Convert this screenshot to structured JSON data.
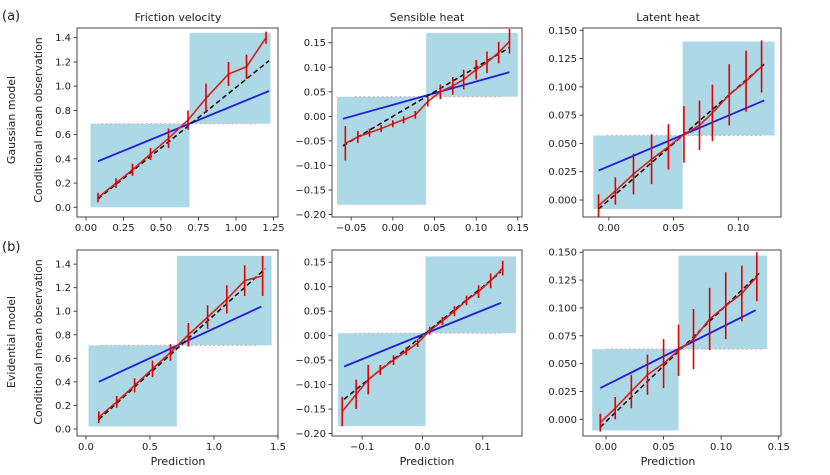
{
  "figure": {
    "row_labels": [
      "(a)",
      "(b)"
    ],
    "row_titles": [
      "Gaussian model",
      "Evidential model"
    ],
    "column_titles": [
      "Friction velocity",
      "Sensible heat",
      "Latent heat"
    ],
    "xlabel": "Prediction",
    "ylabel": "Conditional mean observation"
  },
  "colors": {
    "shade": "#add8e6",
    "model_line": "#1f1fe0",
    "curve": "#d62020",
    "errorbar": "#e00000",
    "ideal": "#111111",
    "mean_line": "#d9a8a8"
  },
  "chart_data": [
    {
      "type": "line",
      "row": 0,
      "col": 0,
      "title": "Friction velocity",
      "xlim": [
        -0.06,
        1.28
      ],
      "ylim": [
        -0.08,
        1.48
      ],
      "xticks": [
        0.0,
        0.25,
        0.5,
        0.75,
        1.0,
        1.25
      ],
      "xtick_labels": [
        "0.00",
        "0.25",
        "0.50",
        "0.75",
        "1.00",
        "1.25"
      ],
      "yticks": [
        0.0,
        0.2,
        0.4,
        0.6,
        0.8,
        1.0,
        1.2,
        1.4
      ],
      "ytick_labels": [
        "0.0",
        "0.2",
        "0.4",
        "0.6",
        "0.8",
        "1.0",
        "1.2",
        "1.4"
      ],
      "split": 0.69,
      "mean_obs": 0.69,
      "x_start": 0.03,
      "x_end": 1.23,
      "band_low": 0.0,
      "band_high": 1.44,
      "blue_line": [
        [
          0.08,
          0.38
        ],
        [
          1.22,
          0.96
        ]
      ],
      "ideal_line": [
        [
          0.08,
          0.07
        ],
        [
          1.22,
          1.21
        ]
      ],
      "series": [
        {
          "x": [
            0.08,
            0.2,
            0.31,
            0.43,
            0.55,
            0.68,
            0.8,
            0.95,
            1.07,
            1.2
          ],
          "y": [
            0.08,
            0.2,
            0.31,
            0.44,
            0.57,
            0.72,
            0.9,
            1.1,
            1.16,
            1.4
          ],
          "err": [
            0.04,
            0.04,
            0.05,
            0.05,
            0.08,
            0.08,
            0.12,
            0.1,
            0.1,
            0.05
          ]
        }
      ]
    },
    {
      "type": "line",
      "row": 0,
      "col": 1,
      "title": "Sensible heat",
      "xlim": [
        -0.073,
        0.155
      ],
      "ylim": [
        -0.205,
        0.18
      ],
      "xticks": [
        -0.05,
        0.0,
        0.05,
        0.1,
        0.15
      ],
      "xtick_labels": [
        "−0.05",
        "0.00",
        "0.05",
        "0.10",
        "0.15"
      ],
      "yticks": [
        -0.2,
        -0.15,
        -0.1,
        -0.05,
        0.0,
        0.05,
        0.1,
        0.15
      ],
      "ytick_labels": [
        "−0.20",
        "−0.15",
        "−0.10",
        "−0.05",
        "0.00",
        "0.05",
        "0.10",
        "0.15"
      ],
      "split": 0.04,
      "mean_obs": 0.04,
      "x_start": -0.067,
      "x_end": 0.15,
      "band_low": -0.18,
      "band_high": 0.17,
      "blue_line": [
        [
          -0.06,
          -0.005
        ],
        [
          0.14,
          0.09
        ]
      ],
      "ideal_line": [
        [
          -0.06,
          -0.06
        ],
        [
          0.14,
          0.14
        ]
      ],
      "series": [
        {
          "x": [
            -0.057,
            -0.042,
            -0.028,
            -0.014,
            0.0,
            0.013,
            0.027,
            0.042,
            0.057,
            0.072,
            0.085,
            0.1,
            0.113,
            0.127,
            0.14
          ],
          "y": [
            -0.055,
            -0.042,
            -0.033,
            -0.025,
            -0.015,
            -0.007,
            0.003,
            0.03,
            0.05,
            0.062,
            0.075,
            0.095,
            0.11,
            0.13,
            0.153
          ],
          "err": [
            0.035,
            0.012,
            0.008,
            0.007,
            0.007,
            0.007,
            0.008,
            0.01,
            0.015,
            0.018,
            0.02,
            0.02,
            0.022,
            0.022,
            0.025
          ]
        }
      ]
    },
    {
      "type": "line",
      "row": 0,
      "col": 2,
      "title": "Latent heat",
      "xlim": [
        -0.02,
        0.133
      ],
      "ylim": [
        -0.015,
        0.152
      ],
      "xticks": [
        0.0,
        0.05,
        0.1
      ],
      "xtick_labels": [
        "0.00",
        "0.05",
        "0.10"
      ],
      "yticks": [
        0.0,
        0.025,
        0.05,
        0.075,
        0.1,
        0.125,
        0.15
      ],
      "ytick_labels": [
        "0.000",
        "0.025",
        "0.050",
        "0.075",
        "0.100",
        "0.125",
        "0.150"
      ],
      "split": 0.057,
      "mean_obs": 0.057,
      "x_start": -0.012,
      "x_end": 0.128,
      "band_low": -0.008,
      "band_high": 0.14,
      "blue_line": [
        [
          -0.008,
          0.026
        ],
        [
          0.12,
          0.088
        ]
      ],
      "ideal_line": [
        [
          -0.008,
          -0.008
        ],
        [
          0.12,
          0.12
        ]
      ],
      "series": [
        {
          "x": [
            -0.008,
            0.005,
            0.019,
            0.033,
            0.046,
            0.058,
            0.07,
            0.08,
            0.093,
            0.106,
            0.118
          ],
          "y": [
            -0.005,
            0.008,
            0.023,
            0.036,
            0.047,
            0.058,
            0.066,
            0.077,
            0.093,
            0.105,
            0.118
          ],
          "err": [
            0.01,
            0.012,
            0.018,
            0.022,
            0.02,
            0.025,
            0.022,
            0.025,
            0.027,
            0.027,
            0.023
          ]
        }
      ]
    },
    {
      "type": "line",
      "row": 1,
      "col": 0,
      "title": "",
      "xlim": [
        -0.07,
        1.5
      ],
      "ylim": [
        -0.06,
        1.52
      ],
      "xticks": [
        0.0,
        0.5,
        1.0,
        1.5
      ],
      "xtick_labels": [
        "0.0",
        "0.5",
        "1.0",
        "1.5"
      ],
      "yticks": [
        0.0,
        0.2,
        0.4,
        0.6,
        0.8,
        1.0,
        1.2,
        1.4
      ],
      "ytick_labels": [
        "0.0",
        "0.2",
        "0.4",
        "0.6",
        "0.8",
        "1.0",
        "1.2",
        "1.4"
      ],
      "split": 0.71,
      "mean_obs": 0.71,
      "x_start": 0.02,
      "x_end": 1.45,
      "band_low": 0.02,
      "band_high": 1.47,
      "blue_line": [
        [
          0.1,
          0.4
        ],
        [
          1.37,
          1.04
        ]
      ],
      "ideal_line": [
        [
          0.1,
          0.08
        ],
        [
          1.4,
          1.36
        ]
      ],
      "series": [
        {
          "x": [
            0.1,
            0.24,
            0.38,
            0.52,
            0.66,
            0.8,
            0.95,
            1.1,
            1.24,
            1.38
          ],
          "y": [
            0.1,
            0.23,
            0.37,
            0.51,
            0.65,
            0.8,
            0.95,
            1.1,
            1.26,
            1.3
          ],
          "err": [
            0.05,
            0.05,
            0.06,
            0.07,
            0.07,
            0.1,
            0.1,
            0.12,
            0.13,
            0.17
          ]
        }
      ]
    },
    {
      "type": "line",
      "row": 1,
      "col": 1,
      "title": "",
      "xlim": [
        -0.15,
        0.165
      ],
      "ylim": [
        -0.205,
        0.175
      ],
      "xticks": [
        -0.1,
        0.0,
        0.1
      ],
      "xtick_labels": [
        "−0.1",
        "0.0",
        "0.1"
      ],
      "yticks": [
        -0.2,
        -0.15,
        -0.1,
        -0.05,
        0.0,
        0.05,
        0.1,
        0.15
      ],
      "ytick_labels": [
        "−0.20",
        "−0.15",
        "−0.10",
        "−0.05",
        "0.00",
        "0.05",
        "0.10",
        "0.15"
      ],
      "split": 0.005,
      "mean_obs": 0.005,
      "x_start": -0.14,
      "x_end": 0.155,
      "band_low": -0.185,
      "band_high": 0.162,
      "blue_line": [
        [
          -0.13,
          -0.063
        ],
        [
          0.13,
          0.067
        ]
      ],
      "ideal_line": [
        [
          -0.13,
          -0.13
        ],
        [
          0.13,
          0.13
        ]
      ],
      "series": [
        {
          "x": [
            -0.133,
            -0.11,
            -0.09,
            -0.07,
            -0.048,
            -0.027,
            -0.008,
            0.012,
            0.033,
            0.053,
            0.073,
            0.093,
            0.113,
            0.133
          ],
          "y": [
            -0.155,
            -0.12,
            -0.09,
            -0.07,
            -0.05,
            -0.032,
            -0.015,
            0.01,
            0.03,
            0.05,
            0.072,
            0.09,
            0.112,
            0.138
          ],
          "err": [
            0.03,
            0.03,
            0.03,
            0.01,
            0.01,
            0.008,
            0.008,
            0.008,
            0.008,
            0.01,
            0.01,
            0.013,
            0.015,
            0.015
          ]
        }
      ]
    },
    {
      "type": "line",
      "row": 1,
      "col": 2,
      "title": "",
      "xlim": [
        -0.02,
        0.152
      ],
      "ylim": [
        -0.015,
        0.152
      ],
      "xticks": [
        0.0,
        0.05,
        0.1,
        0.15
      ],
      "xtick_labels": [
        "0.00",
        "0.05",
        "0.10",
        "0.15"
      ],
      "yticks": [
        0.0,
        0.025,
        0.05,
        0.075,
        0.1,
        0.125,
        0.15
      ],
      "ytick_labels": [
        "0.000",
        "0.025",
        "0.050",
        "0.075",
        "0.100",
        "0.125",
        "0.150"
      ],
      "split": 0.063,
      "mean_obs": 0.063,
      "x_start": -0.012,
      "x_end": 0.14,
      "band_low": -0.01,
      "band_high": 0.147,
      "blue_line": [
        [
          -0.005,
          0.028
        ],
        [
          0.13,
          0.098
        ]
      ],
      "ideal_line": [
        [
          -0.005,
          -0.007
        ],
        [
          0.133,
          0.131
        ]
      ],
      "series": [
        {
          "x": [
            -0.005,
            0.008,
            0.022,
            0.036,
            0.05,
            0.063,
            0.076,
            0.09,
            0.104,
            0.118,
            0.131
          ],
          "y": [
            -0.003,
            0.01,
            0.025,
            0.04,
            0.05,
            0.062,
            0.072,
            0.09,
            0.102,
            0.113,
            0.128
          ],
          "err": [
            0.008,
            0.01,
            0.015,
            0.018,
            0.022,
            0.023,
            0.027,
            0.028,
            0.03,
            0.025,
            0.022
          ]
        }
      ]
    }
  ]
}
